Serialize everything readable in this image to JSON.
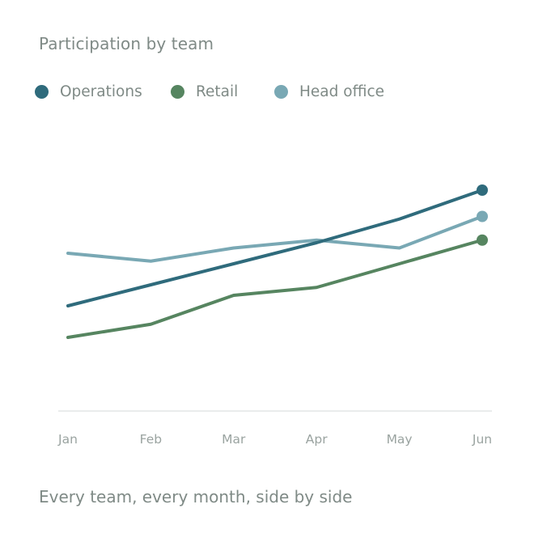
{
  "title": "Participation by team",
  "footer": "Every team, every month, side by side",
  "colors": {
    "operations": "#2f6b7c",
    "retail": "#568560",
    "head_office": "#79a8b4",
    "axis": "#e3e6e5",
    "text": "#7f8a86"
  },
  "legend": [
    {
      "label": "Operations",
      "color": "#2f6b7c"
    },
    {
      "label": "Retail",
      "color": "#568560"
    },
    {
      "label": "Head office",
      "color": "#79a8b4"
    }
  ],
  "chart_data": {
    "type": "line",
    "title": "Participation by team",
    "xlabel": "",
    "ylabel": "",
    "categories": [
      "Jan",
      "Feb",
      "Mar",
      "Apr",
      "May",
      "Jun"
    ],
    "ylim": [
      40,
      90
    ],
    "grid": false,
    "legend_position": "top-left",
    "series": [
      {
        "name": "Operations",
        "color": "#2f6b7c",
        "values": [
          60,
          64,
          68,
          72,
          76.5,
          82
        ]
      },
      {
        "name": "Retail",
        "color": "#568560",
        "values": [
          54,
          56.5,
          62,
          63.5,
          68,
          72.5
        ]
      },
      {
        "name": "Head office",
        "color": "#79a8b4",
        "values": [
          70,
          68.5,
          71,
          72.5,
          71,
          77
        ]
      }
    ]
  }
}
